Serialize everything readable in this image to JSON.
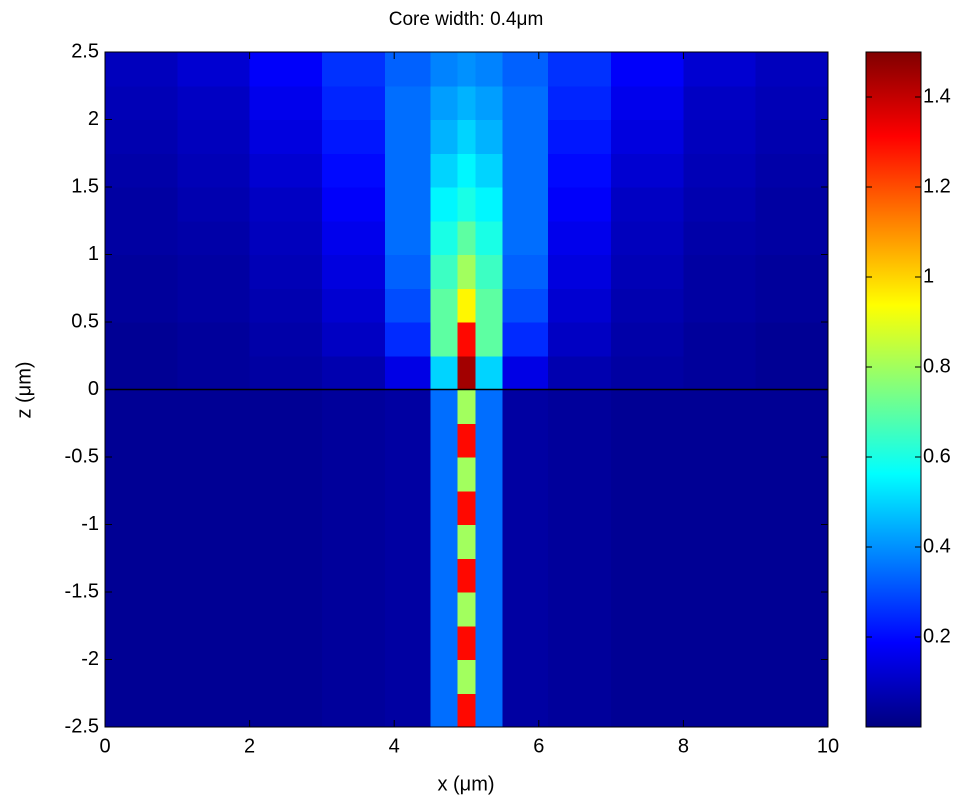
{
  "chart_data": {
    "type": "heatmap",
    "title": "Core width: 0.4μm",
    "x_label": "x (μm)",
    "y_label": "z (μm)",
    "colormap": "jet",
    "hlines": [
      0
    ],
    "hline_color": "#000000",
    "x": [
      0.5,
      1.5,
      2.5,
      3.5,
      4.25,
      4.75,
      5,
      5.25,
      5.75,
      6.5,
      7.5,
      8.5,
      9.5
    ],
    "y": [
      -2.375,
      -2.125,
      -1.875,
      -1.625,
      -1.375,
      -1.125,
      -0.875,
      -0.625,
      -0.375,
      -0.125,
      0.125,
      0.375,
      0.625,
      0.875,
      1.125,
      1.375,
      1.625,
      1.875,
      2.125,
      2.375
    ],
    "values": [
      [
        0.03,
        0.03,
        0.03,
        0.04,
        0.05,
        0.35,
        1.3,
        0.35,
        0.05,
        0.04,
        0.03,
        0.03,
        0.03
      ],
      [
        0.03,
        0.03,
        0.03,
        0.04,
        0.05,
        0.35,
        0.8,
        0.35,
        0.05,
        0.04,
        0.03,
        0.03,
        0.03
      ],
      [
        0.03,
        0.03,
        0.03,
        0.04,
        0.05,
        0.35,
        1.3,
        0.35,
        0.05,
        0.04,
        0.03,
        0.03,
        0.03
      ],
      [
        0.03,
        0.03,
        0.03,
        0.04,
        0.05,
        0.35,
        0.8,
        0.35,
        0.05,
        0.04,
        0.03,
        0.03,
        0.03
      ],
      [
        0.03,
        0.03,
        0.03,
        0.04,
        0.05,
        0.35,
        1.3,
        0.35,
        0.05,
        0.04,
        0.03,
        0.03,
        0.03
      ],
      [
        0.03,
        0.03,
        0.03,
        0.04,
        0.05,
        0.35,
        0.8,
        0.35,
        0.05,
        0.04,
        0.03,
        0.03,
        0.03
      ],
      [
        0.03,
        0.03,
        0.03,
        0.04,
        0.05,
        0.35,
        1.3,
        0.35,
        0.05,
        0.04,
        0.03,
        0.03,
        0.03
      ],
      [
        0.03,
        0.03,
        0.03,
        0.04,
        0.05,
        0.35,
        0.8,
        0.35,
        0.05,
        0.04,
        0.03,
        0.03,
        0.03
      ],
      [
        0.03,
        0.03,
        0.03,
        0.04,
        0.05,
        0.35,
        1.3,
        0.35,
        0.05,
        0.04,
        0.03,
        0.03,
        0.03
      ],
      [
        0.03,
        0.03,
        0.03,
        0.04,
        0.05,
        0.35,
        0.8,
        0.35,
        0.05,
        0.04,
        0.03,
        0.03,
        0.03
      ],
      [
        0.03,
        0.04,
        0.05,
        0.07,
        0.15,
        0.5,
        1.45,
        0.5,
        0.15,
        0.07,
        0.05,
        0.04,
        0.03
      ],
      [
        0.03,
        0.04,
        0.06,
        0.1,
        0.25,
        0.7,
        1.3,
        0.7,
        0.25,
        0.1,
        0.06,
        0.04,
        0.03
      ],
      [
        0.04,
        0.05,
        0.07,
        0.12,
        0.3,
        0.7,
        0.95,
        0.7,
        0.3,
        0.12,
        0.07,
        0.05,
        0.04
      ],
      [
        0.04,
        0.05,
        0.08,
        0.14,
        0.33,
        0.65,
        0.8,
        0.65,
        0.33,
        0.14,
        0.08,
        0.05,
        0.04
      ],
      [
        0.05,
        0.06,
        0.09,
        0.16,
        0.35,
        0.6,
        0.7,
        0.6,
        0.35,
        0.16,
        0.09,
        0.06,
        0.05
      ],
      [
        0.05,
        0.07,
        0.1,
        0.18,
        0.35,
        0.55,
        0.6,
        0.55,
        0.35,
        0.18,
        0.1,
        0.07,
        0.05
      ],
      [
        0.06,
        0.08,
        0.12,
        0.2,
        0.35,
        0.5,
        0.55,
        0.5,
        0.35,
        0.2,
        0.12,
        0.08,
        0.06
      ],
      [
        0.07,
        0.09,
        0.14,
        0.22,
        0.35,
        0.45,
        0.5,
        0.45,
        0.35,
        0.22,
        0.14,
        0.09,
        0.07
      ],
      [
        0.08,
        0.1,
        0.16,
        0.24,
        0.35,
        0.42,
        0.45,
        0.42,
        0.35,
        0.24,
        0.16,
        0.1,
        0.08
      ],
      [
        0.09,
        0.12,
        0.18,
        0.26,
        0.33,
        0.38,
        0.4,
        0.38,
        0.33,
        0.26,
        0.18,
        0.12,
        0.09
      ]
    ],
    "xlim": [
      0,
      10
    ],
    "ylim": [
      -2.5,
      2.5
    ],
    "clim": [
      0,
      1.5
    ],
    "xticks": [
      0,
      2,
      4,
      6,
      8,
      10
    ],
    "yticks": [
      -2.5,
      -2,
      -1.5,
      -1,
      -0.5,
      0,
      0.5,
      1,
      1.5,
      2,
      2.5
    ],
    "cticks": [
      0.2,
      0.4,
      0.6,
      0.8,
      1,
      1.2,
      1.4
    ]
  }
}
